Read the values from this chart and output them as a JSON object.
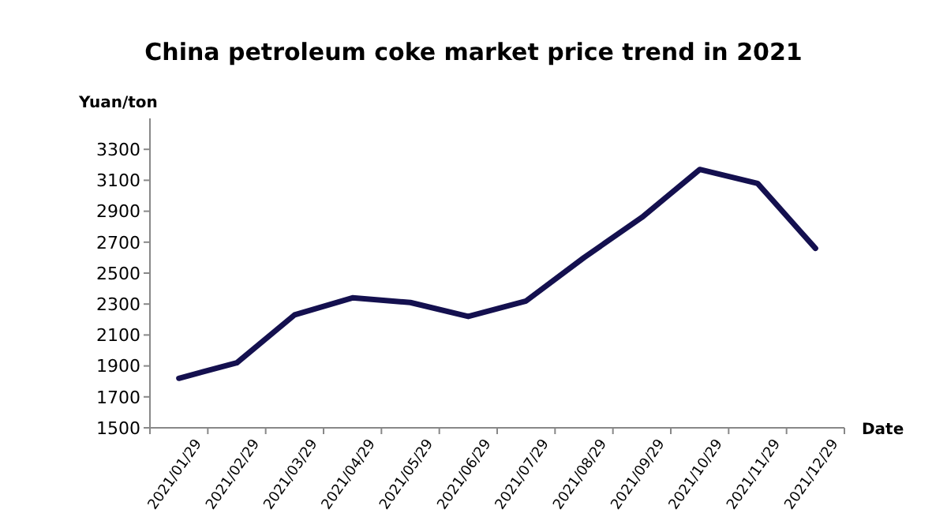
{
  "chart_data": {
    "type": "line",
    "title": "China petroleum coke market price trend in 2021",
    "xlabel": "Date",
    "ylabel": "Yuan/ton",
    "categories": [
      "2021/01/29",
      "2021/02/29",
      "2021/03/29",
      "2021/04/29",
      "2021/05/29",
      "2021/06/29",
      "2021/07/29",
      "2021/08/29",
      "2021/09/29",
      "2021/10/29",
      "2021/11/29",
      "2021/12/29"
    ],
    "series": [
      {
        "color": "#14104f",
        "values": [
          1820,
          1920,
          2230,
          2340,
          2310,
          2220,
          2320,
          2600,
          2860,
          3170,
          3080,
          2660
        ]
      }
    ],
    "ylim": [
      1500,
      3500
    ],
    "yticks": [
      1500,
      1700,
      1900,
      2100,
      2300,
      2500,
      2700,
      2900,
      3100,
      3300
    ],
    "grid": false,
    "marker": "none",
    "line_style": "solid"
  }
}
